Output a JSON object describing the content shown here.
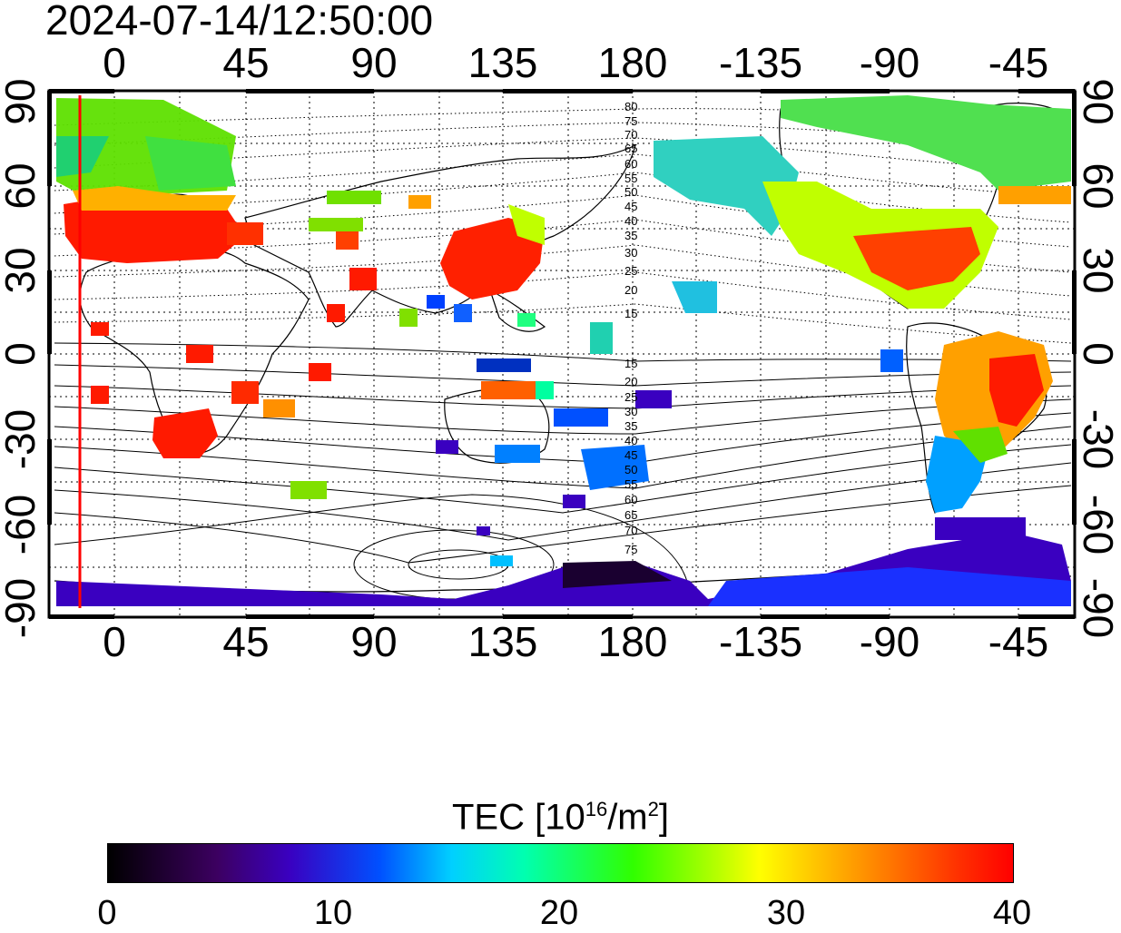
{
  "timestamp": "2024-07-14/12:50:00",
  "axes": {
    "x_ticks": [
      "0",
      "45",
      "90",
      "135",
      "180",
      "-135",
      "-90",
      "-45"
    ],
    "y_ticks": [
      "90",
      "60",
      "30",
      "0",
      "-30",
      "-60",
      "-90"
    ]
  },
  "contour_labels_north": [
    "80",
    "75",
    "70",
    "65",
    "60",
    "55",
    "50",
    "45",
    "40",
    "35",
    "30",
    "25",
    "20",
    "15"
  ],
  "contour_labels_south": [
    "15",
    "20",
    "25",
    "30",
    "35",
    "40",
    "45",
    "50",
    "55",
    "60",
    "65",
    "70",
    "75"
  ],
  "colorbar": {
    "title": "TEC  [10",
    "title_sup": "16",
    "title_mid": "/m",
    "title_sup2": "2",
    "title_end": "]",
    "labels": [
      "0",
      "10",
      "20",
      "30",
      "40"
    ],
    "min": 0,
    "max": 40,
    "colors": [
      "#000000",
      "#3c0060",
      "#3a00c0",
      "#0050ff",
      "#00d0ff",
      "#00ffb0",
      "#30ff00",
      "#c0ff00",
      "#ffff00",
      "#ffa000",
      "#ff3000",
      "#ff0000"
    ]
  },
  "map_features": {
    "red_line_longitude": -20,
    "regions": [
      {
        "name": "europe",
        "tec": 38
      },
      {
        "name": "east-asia",
        "tec": 36
      },
      {
        "name": "southern-africa",
        "tec": 40
      },
      {
        "name": "north-america-east",
        "tec": 32
      },
      {
        "name": "north-america-west",
        "tec": 18
      },
      {
        "name": "south-america",
        "tec": 28
      },
      {
        "name": "antarctica",
        "tec": 6
      }
    ]
  }
}
